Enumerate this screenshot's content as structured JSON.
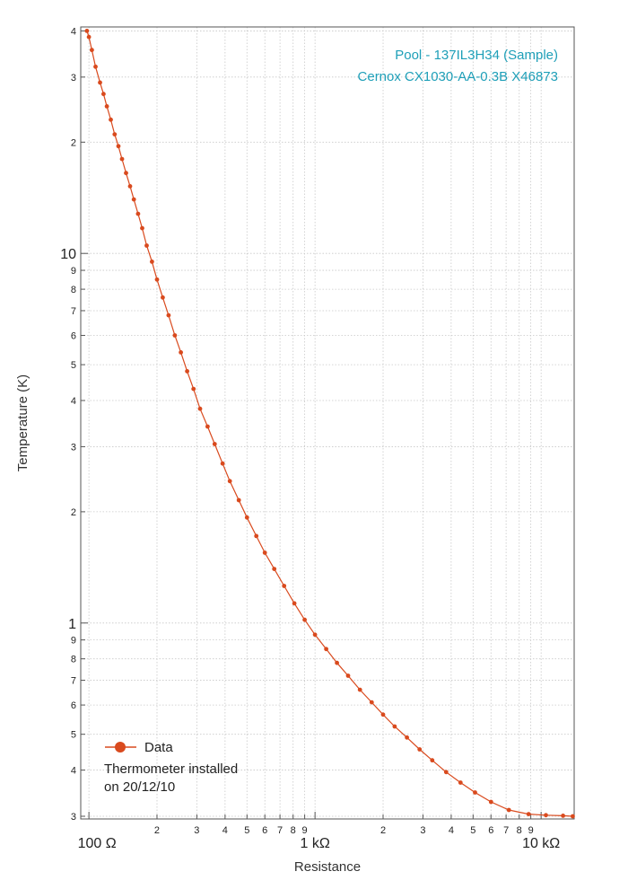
{
  "chart_data": {
    "type": "line",
    "x_scale": "log",
    "y_scale": "log",
    "xlabel": "Resistance",
    "ylabel": "Temperature (K)",
    "xlim": [
      92,
      14000
    ],
    "ylim": [
      0.295,
      41
    ],
    "grid": true,
    "x_major_ticks": [
      {
        "value": 100,
        "label": "100   Ω"
      },
      {
        "value": 1000,
        "label": "1 kΩ"
      },
      {
        "value": 10000,
        "label": "10 kΩ"
      }
    ],
    "x_minor_ticks": [
      {
        "value": 200,
        "label": "2"
      },
      {
        "value": 300,
        "label": "3"
      },
      {
        "value": 400,
        "label": "4"
      },
      {
        "value": 500,
        "label": "5"
      },
      {
        "value": 600,
        "label": "6"
      },
      {
        "value": 700,
        "label": "7"
      },
      {
        "value": 800,
        "label": "8"
      },
      {
        "value": 900,
        "label": "9"
      },
      {
        "value": 2000,
        "label": "2"
      },
      {
        "value": 3000,
        "label": "3"
      },
      {
        "value": 4000,
        "label": "4"
      },
      {
        "value": 5000,
        "label": "5"
      },
      {
        "value": 6000,
        "label": "6"
      },
      {
        "value": 7000,
        "label": "7"
      },
      {
        "value": 8000,
        "label": "8"
      },
      {
        "value": 9000,
        "label": "9"
      }
    ],
    "y_major_ticks": [
      {
        "value": 1,
        "label": "1"
      },
      {
        "value": 10,
        "label": "10"
      }
    ],
    "y_minor_ticks": [
      {
        "value": 0.3,
        "label": "3"
      },
      {
        "value": 0.4,
        "label": "4"
      },
      {
        "value": 0.5,
        "label": "5"
      },
      {
        "value": 0.6,
        "label": "6"
      },
      {
        "value": 0.7,
        "label": "7"
      },
      {
        "value": 0.8,
        "label": "8"
      },
      {
        "value": 0.9,
        "label": "9"
      },
      {
        "value": 2,
        "label": "2"
      },
      {
        "value": 3,
        "label": "3"
      },
      {
        "value": 4,
        "label": "4"
      },
      {
        "value": 5,
        "label": "5"
      },
      {
        "value": 6,
        "label": "6"
      },
      {
        "value": 7,
        "label": "7"
      },
      {
        "value": 8,
        "label": "8"
      },
      {
        "value": 9,
        "label": "9"
      },
      {
        "value": 20,
        "label": "2"
      },
      {
        "value": 30,
        "label": "3"
      },
      {
        "value": 40,
        "label": "4"
      }
    ],
    "series": [
      {
        "name": "Data",
        "color": "#d94a1e",
        "marker": "circle",
        "points": [
          [
            98,
            40
          ],
          [
            100,
            38.5
          ],
          [
            103,
            35.5
          ],
          [
            107,
            32
          ],
          [
            112,
            29
          ],
          [
            116,
            27
          ],
          [
            120,
            25
          ],
          [
            125,
            23
          ],
          [
            130,
            21
          ],
          [
            135,
            19.5
          ],
          [
            140,
            18
          ],
          [
            146,
            16.5
          ],
          [
            152,
            15.2
          ],
          [
            158,
            14
          ],
          [
            165,
            12.8
          ],
          [
            172,
            11.7
          ],
          [
            180,
            10.5
          ],
          [
            190,
            9.5
          ],
          [
            200,
            8.5
          ],
          [
            212,
            7.6
          ],
          [
            225,
            6.8
          ],
          [
            240,
            6.0
          ],
          [
            255,
            5.4
          ],
          [
            272,
            4.8
          ],
          [
            290,
            4.3
          ],
          [
            310,
            3.8
          ],
          [
            335,
            3.4
          ],
          [
            360,
            3.05
          ],
          [
            390,
            2.7
          ],
          [
            420,
            2.42
          ],
          [
            460,
            2.15
          ],
          [
            500,
            1.93
          ],
          [
            550,
            1.72
          ],
          [
            600,
            1.55
          ],
          [
            660,
            1.4
          ],
          [
            730,
            1.26
          ],
          [
            810,
            1.13
          ],
          [
            900,
            1.02
          ],
          [
            1000,
            0.93
          ],
          [
            1120,
            0.85
          ],
          [
            1250,
            0.78
          ],
          [
            1400,
            0.72
          ],
          [
            1580,
            0.66
          ],
          [
            1780,
            0.61
          ],
          [
            2000,
            0.565
          ],
          [
            2250,
            0.525
          ],
          [
            2550,
            0.49
          ],
          [
            2900,
            0.455
          ],
          [
            3300,
            0.425
          ],
          [
            3800,
            0.395
          ],
          [
            4400,
            0.37
          ],
          [
            5100,
            0.348
          ],
          [
            6000,
            0.328
          ],
          [
            7200,
            0.312
          ],
          [
            8800,
            0.304
          ],
          [
            10500,
            0.302
          ],
          [
            12500,
            0.301
          ],
          [
            13800,
            0.3
          ]
        ]
      }
    ]
  },
  "annotation": {
    "line1": "Pool - 137IL3H34 (Sample)",
    "line2": "Cernox CX1030-AA-0.3B X46873",
    "color": "#1e9fb8"
  },
  "legend": {
    "label": "Data",
    "note_line1": "Thermometer installed",
    "note_line2": "on 20/12/10"
  }
}
